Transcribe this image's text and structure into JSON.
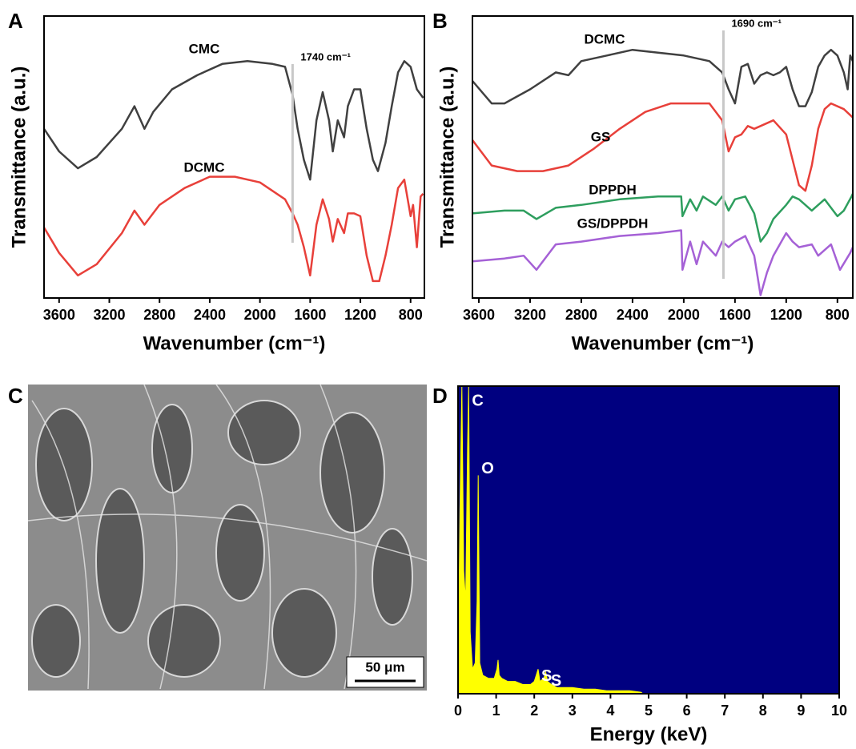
{
  "chart_data": [
    {
      "panel": "A",
      "type": "line",
      "x_label": "Wavenumber (cm⁻¹)",
      "y_label": "Transmittance (a.u.)",
      "xlim": [
        3720,
        690
      ],
      "ylim": [
        0,
        100
      ],
      "xticks": [
        3600,
        3200,
        2800,
        2400,
        2000,
        1600,
        1200,
        800
      ],
      "series": [
        {
          "name": "CMC",
          "color": "#404040",
          "x": [
            3720,
            3600,
            3450,
            3300,
            3100,
            3000,
            2920,
            2850,
            2700,
            2500,
            2300,
            2100,
            1900,
            1800,
            1740,
            1700,
            1650,
            1600,
            1550,
            1500,
            1450,
            1420,
            1380,
            1330,
            1300,
            1250,
            1200,
            1150,
            1100,
            1060,
            1000,
            950,
            900,
            850,
            800,
            750,
            700
          ],
          "values": [
            60,
            52,
            46,
            50,
            60,
            68,
            60,
            66,
            74,
            79,
            83,
            84,
            83,
            82,
            72,
            60,
            49,
            42,
            63,
            73,
            63,
            52,
            63,
            57,
            68,
            74,
            74,
            60,
            49,
            45,
            55,
            68,
            80,
            84,
            82,
            74,
            71
          ]
        },
        {
          "name": "DCMC",
          "color": "#e8403a",
          "x": [
            3720,
            3600,
            3450,
            3300,
            3100,
            3000,
            2920,
            2800,
            2600,
            2400,
            2200,
            2000,
            1800,
            1740,
            1700,
            1650,
            1600,
            1550,
            1500,
            1450,
            1420,
            1380,
            1330,
            1300,
            1250,
            1200,
            1150,
            1100,
            1050,
            1000,
            950,
            900,
            850,
            800,
            780,
            750,
            720,
            700
          ],
          "values": [
            25,
            16,
            8,
            12,
            23,
            31,
            26,
            33,
            39,
            43,
            43,
            41,
            35,
            30,
            26,
            18,
            8,
            26,
            35,
            28,
            20,
            28,
            23,
            30,
            30,
            29,
            15,
            6,
            6,
            15,
            26,
            39,
            42,
            29,
            33,
            18,
            36,
            37
          ]
        }
      ],
      "annotations": [
        {
          "text": "1740 cm⁻¹",
          "x": 1740
        }
      ]
    },
    {
      "panel": "B",
      "type": "line",
      "x_label": "Wavenumber (cm⁻¹)",
      "y_label": "Transmittance (a.u.)",
      "xlim": [
        3650,
        680
      ],
      "ylim": [
        0,
        100
      ],
      "xticks": [
        3600,
        3200,
        2800,
        2400,
        2000,
        1600,
        1200,
        800
      ],
      "series": [
        {
          "name": "DCMC",
          "color": "#404040",
          "x": [
            3650,
            3500,
            3400,
            3200,
            3000,
            2900,
            2800,
            2600,
            2400,
            2200,
            2000,
            1800,
            1700,
            1650,
            1600,
            1550,
            1500,
            1450,
            1400,
            1350,
            1300,
            1250,
            1200,
            1150,
            1100,
            1050,
            1000,
            950,
            900,
            850,
            800,
            750,
            720,
            700,
            680
          ],
          "values": [
            77,
            69,
            69,
            74,
            80,
            79,
            84,
            86,
            88,
            87,
            86,
            84,
            80,
            74,
            69,
            82,
            83,
            76,
            79,
            80,
            79,
            80,
            82,
            74,
            68,
            68,
            73,
            82,
            86,
            88,
            86,
            80,
            74,
            86,
            84
          ]
        },
        {
          "name": "GS",
          "color": "#e8403a",
          "x": [
            3650,
            3500,
            3300,
            3100,
            2900,
            2700,
            2500,
            2300,
            2100,
            1950,
            1800,
            1700,
            1650,
            1600,
            1550,
            1500,
            1450,
            1400,
            1300,
            1200,
            1150,
            1100,
            1050,
            1000,
            950,
            900,
            850,
            750,
            680
          ],
          "values": [
            56,
            47,
            45,
            45,
            47,
            53,
            60,
            66,
            69,
            69,
            69,
            63,
            52,
            57,
            58,
            61,
            60,
            61,
            63,
            58,
            49,
            40,
            38,
            47,
            60,
            67,
            69,
            67,
            64
          ]
        },
        {
          "name": "DPPDH",
          "color": "#2e9e5e",
          "x": [
            3650,
            3400,
            3250,
            3150,
            3000,
            2800,
            2500,
            2200,
            2020,
            2010,
            1950,
            1900,
            1850,
            1750,
            1700,
            1650,
            1600,
            1520,
            1450,
            1400,
            1350,
            1300,
            1200,
            1150,
            1100,
            1000,
            900,
            800,
            750,
            690,
            680
          ],
          "values": [
            30,
            31,
            31,
            28,
            32,
            33,
            35,
            36,
            36,
            29,
            35,
            31,
            36,
            33,
            36,
            31,
            35,
            36,
            30,
            20,
            23,
            28,
            33,
            36,
            35,
            31,
            35,
            29,
            31,
            36,
            37
          ]
        },
        {
          "name": "GS/DPPDH",
          "color": "#a561d6",
          "x": [
            3650,
            3400,
            3250,
            3150,
            3000,
            2800,
            2500,
            2200,
            2020,
            2010,
            1950,
            1900,
            1850,
            1750,
            1700,
            1650,
            1600,
            1520,
            1450,
            1400,
            1350,
            1300,
            1200,
            1150,
            1100,
            1000,
            950,
            850,
            780,
            700,
            680
          ],
          "values": [
            13,
            14,
            15,
            10,
            19,
            20,
            22,
            23,
            24,
            10,
            20,
            12,
            20,
            15,
            20,
            18,
            20,
            22,
            15,
            1,
            9,
            15,
            23,
            20,
            18,
            19,
            15,
            19,
            10,
            16,
            18
          ]
        }
      ],
      "annotations": [
        {
          "text": "1690 cm⁻¹",
          "x": 1690
        }
      ]
    },
    {
      "panel": "D",
      "type": "area",
      "x_label": "Energy (keV)",
      "color": "#ffff00",
      "background": "#000080",
      "xlim": [
        0,
        10
      ],
      "ylim": [
        0,
        100
      ],
      "xticks": [
        0,
        1,
        2,
        3,
        4,
        5,
        6,
        7,
        8,
        9,
        10
      ],
      "x": [
        0,
        0.05,
        0.1,
        0.15,
        0.2,
        0.25,
        0.28,
        0.32,
        0.38,
        0.45,
        0.5,
        0.53,
        0.57,
        0.65,
        0.8,
        0.95,
        1.02,
        1.05,
        1.08,
        1.15,
        1.3,
        1.5,
        1.7,
        1.9,
        2.0,
        2.05,
        2.1,
        2.15,
        2.25,
        2.3,
        2.35,
        2.45,
        2.6,
        2.8,
        3.0,
        3.3,
        3.6,
        3.9,
        4.2,
        4.5,
        4.8,
        4.85
      ],
      "values": [
        0,
        60,
        100,
        40,
        30,
        80,
        100,
        20,
        8,
        10,
        30,
        71,
        10,
        6,
        5,
        5,
        8,
        11,
        6,
        5,
        4,
        4,
        3,
        3,
        4,
        6,
        8,
        4,
        5,
        7,
        4,
        3,
        2,
        2,
        2,
        1.5,
        1.5,
        1,
        1,
        1,
        0.5,
        0
      ],
      "annotations": [
        {
          "text": "C",
          "x": 0.28,
          "y": 95
        },
        {
          "text": "O",
          "x": 0.53,
          "y": 73
        },
        {
          "text": "S",
          "x": 2.1,
          "y": 5.5
        },
        {
          "text": "S",
          "x": 2.35,
          "y": 4
        }
      ]
    }
  ],
  "image": {
    "panel": "C",
    "scale_bar": "50 μm"
  }
}
